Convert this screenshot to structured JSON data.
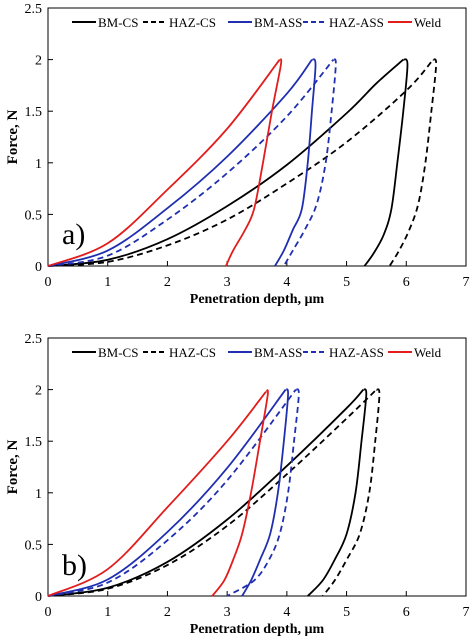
{
  "chart_data": [
    {
      "type": "line",
      "panel_label": "a)",
      "xlabel": "Penetration depth, µm",
      "ylabel": "Force, N",
      "xlim": [
        0,
        7
      ],
      "ylim": [
        0,
        2.5
      ],
      "xticks": [
        "0",
        "1",
        "2",
        "3",
        "4",
        "5",
        "6",
        "7"
      ],
      "yticks": [
        "0",
        "0.5",
        "1",
        "1.5",
        "2",
        "2.5"
      ],
      "grid": false,
      "legend_position": "top",
      "series": [
        {
          "name": "BM-CS",
          "color": "#000000",
          "dash": "solid",
          "loading": {
            "x": [
              0,
              1,
              2,
              3,
              4,
              5,
              5.5,
              5.95
            ],
            "y": [
              0,
              0.06,
              0.26,
              0.58,
              0.98,
              1.48,
              1.77,
              2.0
            ]
          },
          "unloading": {
            "x": [
              5.95,
              6.02,
              5.95,
              5.85,
              5.75,
              5.62,
              5.45,
              5.3
            ],
            "y": [
              2.0,
              1.95,
              1.5,
              1.0,
              0.55,
              0.3,
              0.12,
              0
            ]
          }
        },
        {
          "name": "HAZ-CS",
          "color": "#000000",
          "dash": "dashed",
          "loading": {
            "x": [
              0,
              1,
              2,
              3,
              4,
              5,
              6,
              6.45
            ],
            "y": [
              0,
              0.04,
              0.2,
              0.45,
              0.8,
              1.2,
              1.7,
              2.0
            ]
          },
          "unloading": {
            "x": [
              6.45,
              6.5,
              6.42,
              6.32,
              6.2,
              6.05,
              5.88,
              5.72
            ],
            "y": [
              2.0,
              1.95,
              1.5,
              1.0,
              0.6,
              0.35,
              0.15,
              0
            ]
          }
        },
        {
          "name": "BM-ASS",
          "color": "#1f2fb0",
          "dash": "solid",
          "loading": {
            "x": [
              0,
              1,
              2,
              3,
              4,
              4.42
            ],
            "y": [
              0,
              0.15,
              0.56,
              1.06,
              1.67,
              2.0
            ]
          },
          "unloading": {
            "x": [
              4.42,
              4.48,
              4.42,
              4.35,
              4.25,
              4.1,
              3.95,
              3.8
            ],
            "y": [
              2.0,
              1.95,
              1.5,
              1.0,
              0.55,
              0.35,
              0.15,
              0
            ]
          }
        },
        {
          "name": "HAZ-ASS",
          "color": "#1f2fb0",
          "dash": "dashed",
          "loading": {
            "x": [
              0,
              1,
              2,
              3,
              4,
              4.78
            ],
            "y": [
              0,
              0.1,
              0.45,
              0.9,
              1.45,
              2.0
            ]
          },
          "unloading": {
            "x": [
              4.78,
              4.82,
              4.75,
              4.65,
              4.5,
              4.3,
              4.1,
              3.95
            ],
            "y": [
              2.0,
              1.95,
              1.5,
              1.0,
              0.6,
              0.35,
              0.15,
              0
            ]
          }
        },
        {
          "name": "Weld",
          "color": "#e11d1d",
          "dash": "solid",
          "loading": {
            "x": [
              0,
              1,
              2,
              3,
              3.88
            ],
            "y": [
              0,
              0.22,
              0.74,
              1.33,
              2.0
            ]
          },
          "unloading": {
            "x": [
              3.88,
              3.9,
              3.75,
              3.6,
              3.45,
              3.3,
              3.1,
              2.98
            ],
            "y": [
              2.0,
              1.95,
              1.5,
              1.0,
              0.55,
              0.35,
              0.15,
              0
            ]
          }
        }
      ]
    },
    {
      "type": "line",
      "panel_label": "b)",
      "xlabel": "Penetration depth, µm",
      "ylabel": "Force, N",
      "xlim": [
        0,
        7
      ],
      "ylim": [
        0,
        2.5
      ],
      "xticks": [
        "0",
        "1",
        "2",
        "3",
        "4",
        "5",
        "6",
        "7"
      ],
      "yticks": [
        "0",
        "0.5",
        "1",
        "1.5",
        "2",
        "2.5"
      ],
      "grid": false,
      "legend_position": "top",
      "series": [
        {
          "name": "BM-CS",
          "color": "#000000",
          "dash": "solid",
          "loading": {
            "x": [
              0,
              1,
              2,
              3,
              4,
              5,
              5.28
            ],
            "y": [
              0,
              0.08,
              0.33,
              0.74,
              1.26,
              1.82,
              2.0
            ]
          },
          "unloading": {
            "x": [
              5.28,
              5.33,
              5.25,
              5.15,
              5.0,
              4.8,
              4.6,
              4.35
            ],
            "y": [
              2.0,
              1.95,
              1.5,
              1.0,
              0.6,
              0.35,
              0.15,
              0
            ]
          }
        },
        {
          "name": "HAZ-CS",
          "color": "#000000",
          "dash": "dashed",
          "loading": {
            "x": [
              0,
              1,
              2,
              3,
              4,
              5,
              5.5
            ],
            "y": [
              0,
              0.07,
              0.3,
              0.68,
              1.18,
              1.72,
              2.0
            ]
          },
          "unloading": {
            "x": [
              5.5,
              5.55,
              5.48,
              5.38,
              5.22,
              5.0,
              4.8,
              4.6
            ],
            "y": [
              2.0,
              1.95,
              1.5,
              1.0,
              0.6,
              0.35,
              0.15,
              0
            ]
          }
        },
        {
          "name": "BM-ASS",
          "color": "#1f2fb0",
          "dash": "solid",
          "loading": {
            "x": [
              0,
              1,
              2,
              3,
              3.98
            ],
            "y": [
              0,
              0.16,
              0.62,
              1.24,
              2.0
            ]
          },
          "unloading": {
            "x": [
              3.98,
              4.02,
              3.95,
              3.85,
              3.72,
              3.55,
              3.4,
              3.25
            ],
            "y": [
              2.0,
              1.95,
              1.5,
              1.0,
              0.6,
              0.35,
              0.15,
              0
            ]
          }
        },
        {
          "name": "HAZ-ASS",
          "color": "#1f2fb0",
          "dash": "dashed",
          "loading": {
            "x": [
              0,
              1,
              2,
              3,
              4.15
            ],
            "y": [
              0,
              0.13,
              0.54,
              1.12,
              2.0
            ]
          },
          "unloading": {
            "x": [
              4.15,
              4.2,
              4.12,
              4.02,
              3.88,
              3.7,
              3.45,
              3.0
            ],
            "y": [
              2.0,
              1.95,
              1.5,
              1.0,
              0.6,
              0.35,
              0.15,
              0
            ]
          }
        },
        {
          "name": "Weld",
          "color": "#e11d1d",
          "dash": "solid",
          "loading": {
            "x": [
              0,
              1,
              2,
              3,
              3.65
            ],
            "y": [
              0,
              0.26,
              0.86,
              1.5,
              1.98
            ]
          },
          "unloading": {
            "x": [
              3.65,
              3.68,
              3.55,
              3.4,
              3.25,
              3.1,
              2.95,
              2.75
            ],
            "y": [
              1.98,
              1.95,
              1.5,
              1.0,
              0.6,
              0.35,
              0.15,
              0
            ]
          }
        }
      ]
    }
  ]
}
